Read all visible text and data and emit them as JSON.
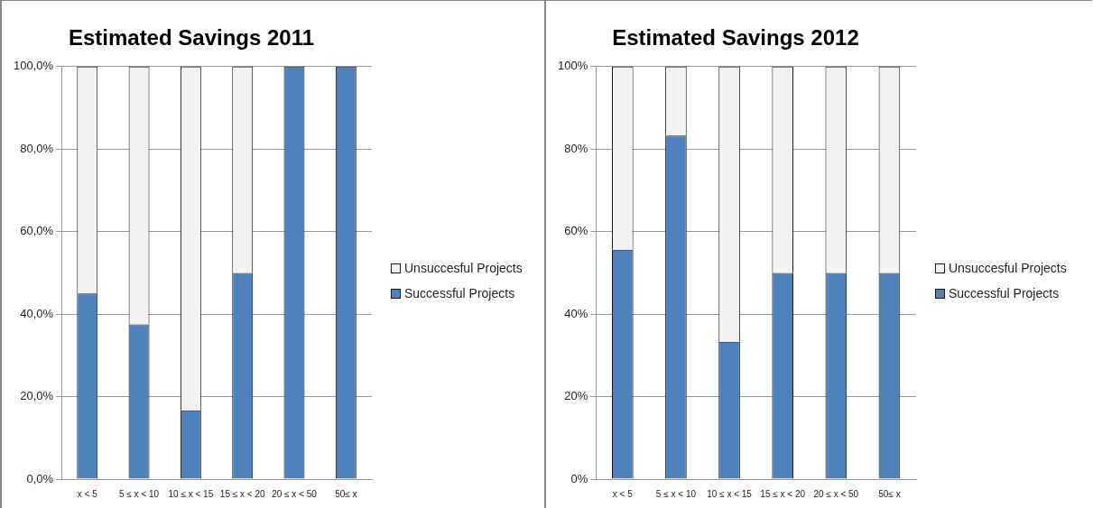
{
  "chart_data": [
    {
      "type": "bar",
      "title": "Estimated Savings 2011",
      "stacked": true,
      "categories": [
        "x < 5",
        "5 ≤ x < 10",
        "10 ≤ x < 15",
        "15 ≤ x < 20",
        "20 ≤ x < 50",
        "50≤ x"
      ],
      "series": [
        {
          "name": "Successful Projects",
          "color": "#4f81bd",
          "values": [
            45,
            37.5,
            16.7,
            50,
            100,
            100
          ]
        },
        {
          "name": "Unsuccesful Projects",
          "color": "#f2f2f2",
          "values": [
            55,
            62.5,
            83.3,
            50,
            0,
            0
          ]
        }
      ],
      "ylim": [
        0,
        100
      ],
      "yticks": [
        {
          "value": 0,
          "label": "0,0%"
        },
        {
          "value": 20,
          "label": "20,0%"
        },
        {
          "value": 40,
          "label": "40,0%"
        },
        {
          "value": 60,
          "label": "60,0%"
        },
        {
          "value": 80,
          "label": "80,0%"
        },
        {
          "value": 100,
          "label": "100,0%"
        }
      ],
      "grid": "y",
      "legend": "right"
    },
    {
      "type": "bar",
      "title": "Estimated Savings 2012",
      "stacked": true,
      "categories": [
        "x < 5",
        "5 ≤ x < 10",
        "10 ≤ x < 15",
        "15 ≤ x < 20",
        "20 ≤ x < 50",
        "50≤ x"
      ],
      "series": [
        {
          "name": "Successful Projects",
          "color": "#4f81bd",
          "values": [
            55.6,
            83.3,
            33.3,
            50,
            50,
            50
          ]
        },
        {
          "name": "Unsuccesful Projects",
          "color": "#f2f2f2",
          "values": [
            44.4,
            16.7,
            66.7,
            50,
            50,
            50
          ]
        }
      ],
      "ylim": [
        0,
        100
      ],
      "yticks": [
        {
          "value": 0,
          "label": "0%"
        },
        {
          "value": 20,
          "label": "20%"
        },
        {
          "value": 40,
          "label": "40%"
        },
        {
          "value": 60,
          "label": "60%"
        },
        {
          "value": 80,
          "label": "80%"
        },
        {
          "value": 100,
          "label": "100%"
        }
      ],
      "grid": "y",
      "legend": "right"
    }
  ]
}
